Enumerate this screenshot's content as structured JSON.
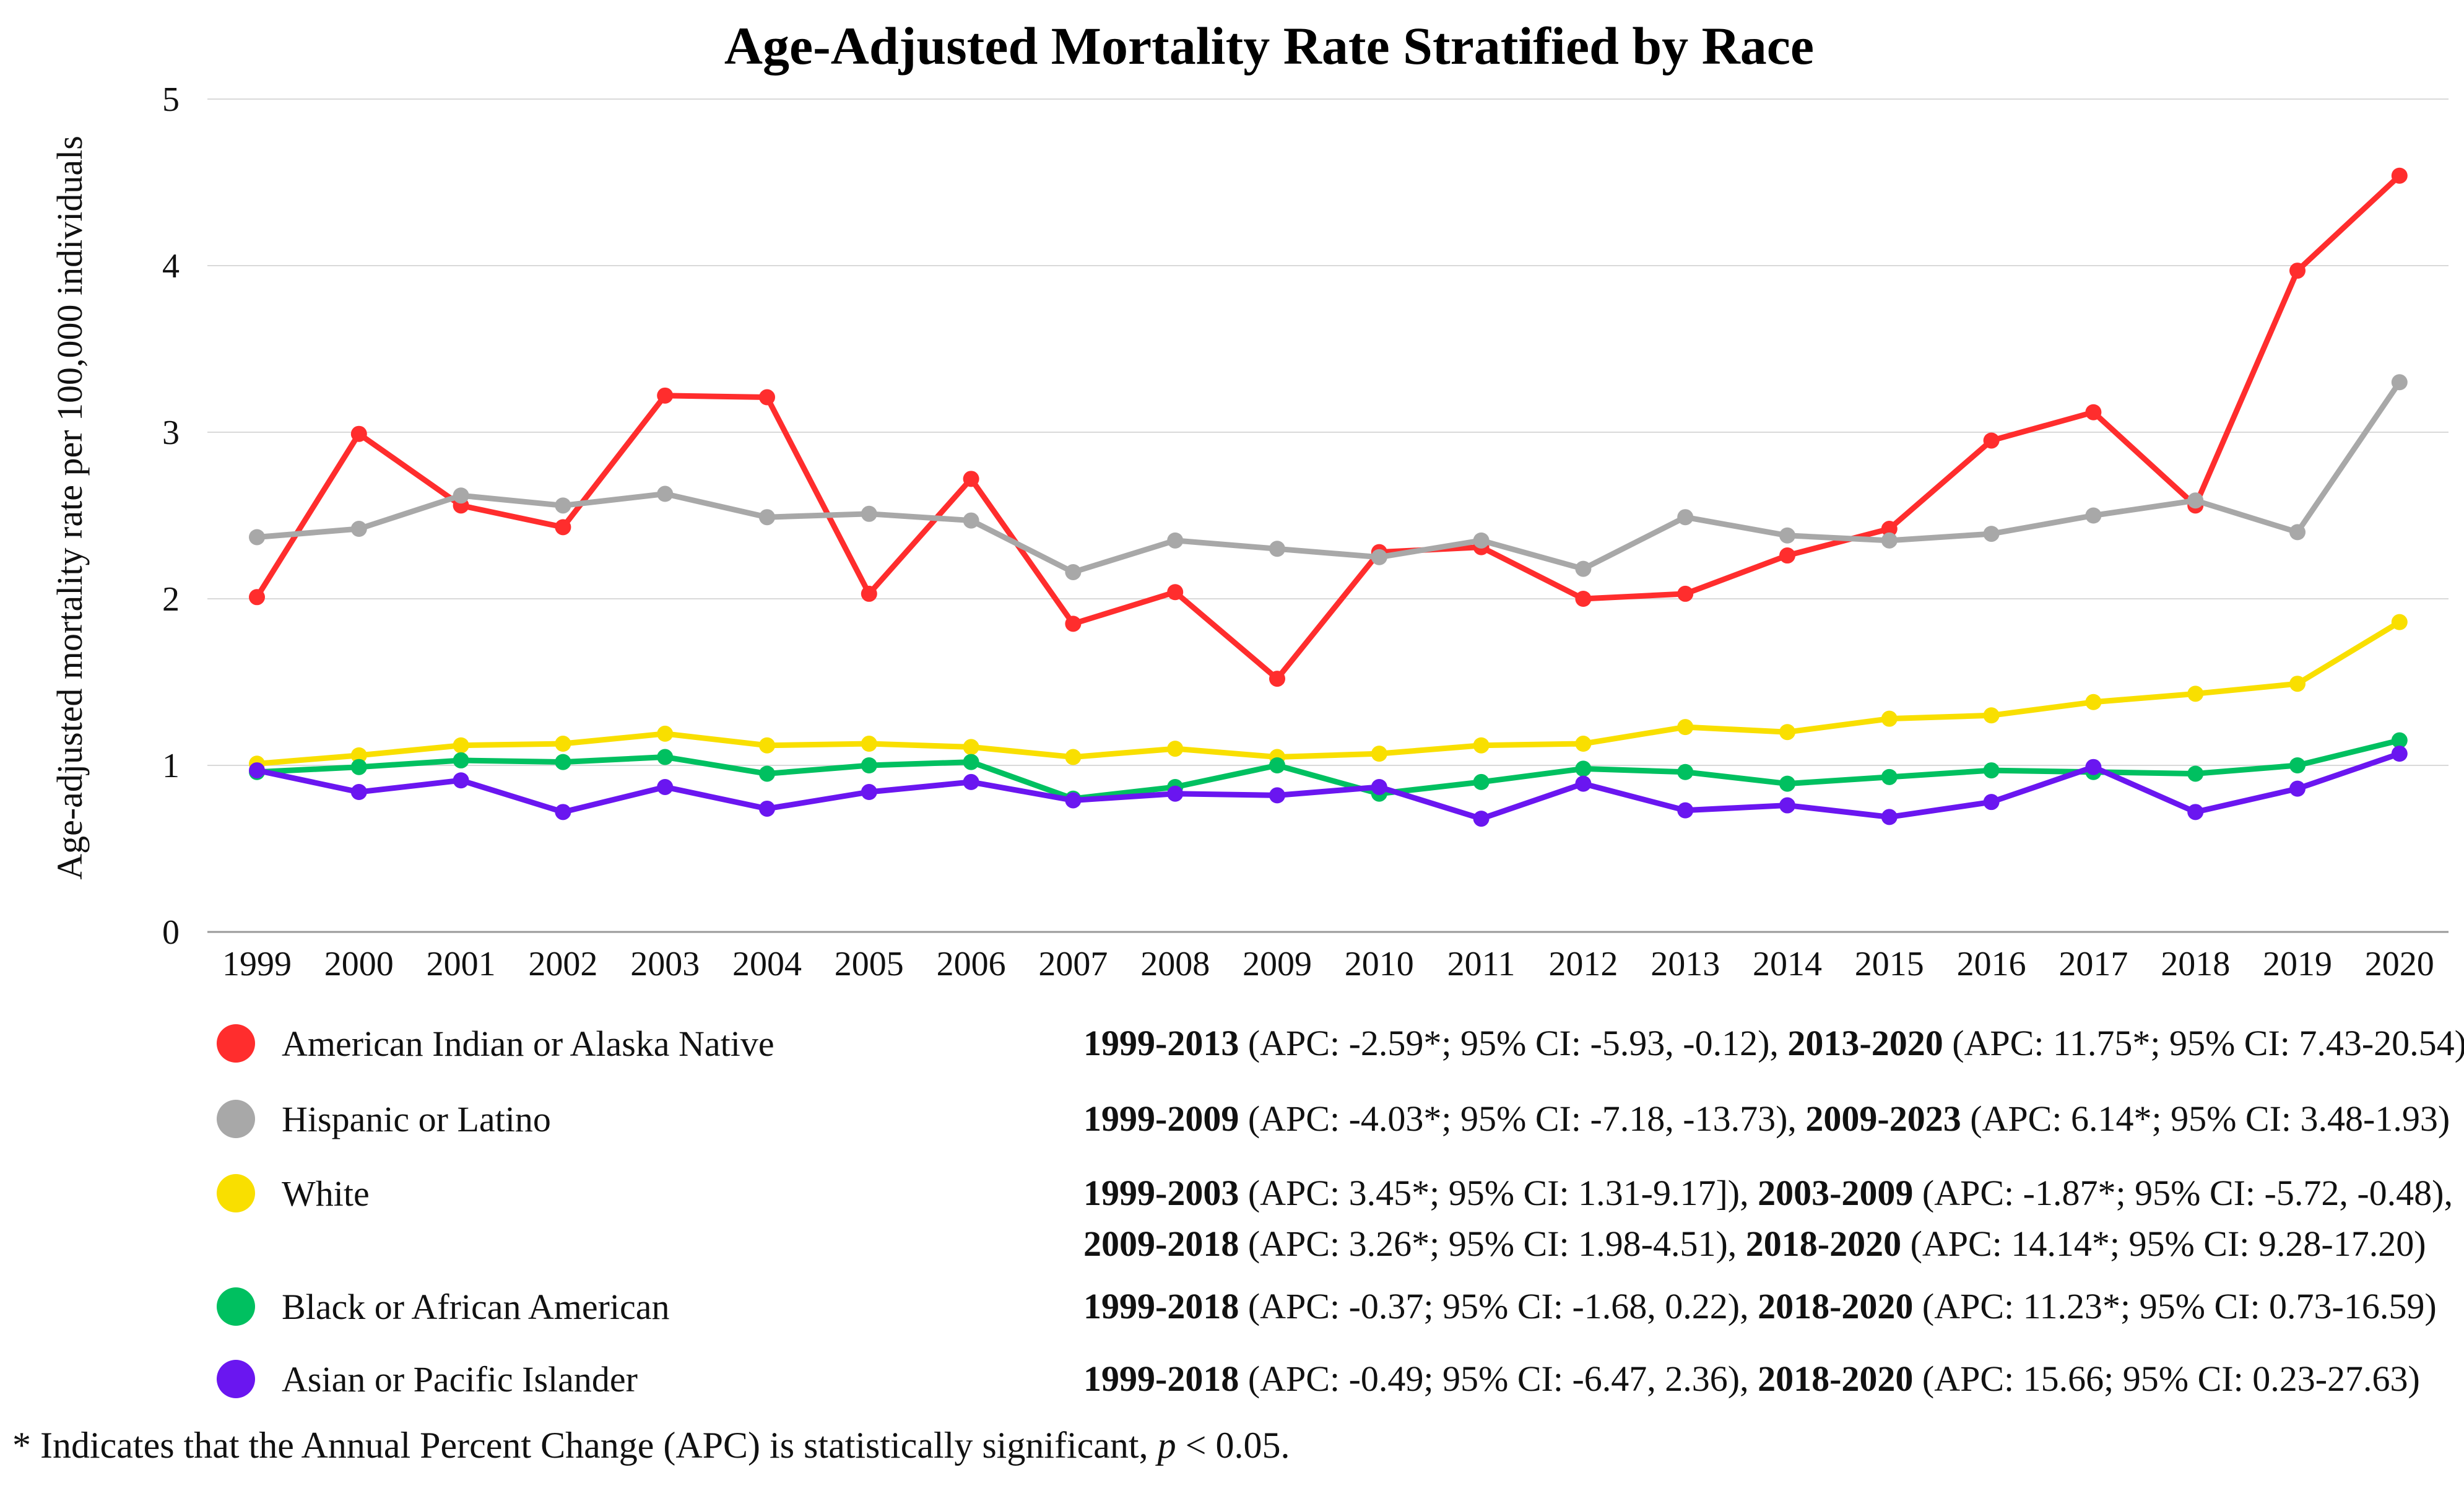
{
  "chart_data": {
    "type": "line",
    "title": "Age-Adjusted Mortality Rate Stratified by Race",
    "xlabel": "",
    "ylabel": "Age-adjusted mortality rate per 100,000 individuals",
    "ylim": [
      0,
      5
    ],
    "yticks": [
      "0",
      "1",
      "2",
      "3",
      "4",
      "5"
    ],
    "grid": true,
    "categories": [
      "1999",
      "2000",
      "2001",
      "2002",
      "2003",
      "2004",
      "2005",
      "2006",
      "2007",
      "2008",
      "2009",
      "2010",
      "2011",
      "2012",
      "2013",
      "2014",
      "2015",
      "2016",
      "2017",
      "2018",
      "2019",
      "2020"
    ],
    "series": [
      {
        "name": "American Indian or Alaska Native",
        "color": "#ff2d2d",
        "values": [
          2.01,
          2.99,
          2.56,
          2.43,
          3.22,
          3.21,
          2.03,
          2.72,
          1.85,
          2.04,
          1.52,
          2.28,
          2.31,
          2.0,
          2.03,
          2.26,
          2.42,
          2.95,
          3.12,
          2.56,
          3.97,
          4.54
        ]
      },
      {
        "name": "Hispanic or Latino",
        "color": "#a8a8a8",
        "values": [
          2.37,
          2.42,
          2.62,
          2.56,
          2.63,
          2.49,
          2.51,
          2.47,
          2.16,
          2.35,
          2.3,
          2.25,
          2.35,
          2.18,
          2.49,
          2.38,
          2.35,
          2.39,
          2.5,
          2.59,
          2.4,
          3.3
        ]
      },
      {
        "name": "White",
        "color": "#f9df00",
        "values": [
          1.01,
          1.06,
          1.12,
          1.13,
          1.19,
          1.12,
          1.13,
          1.11,
          1.05,
          1.1,
          1.05,
          1.07,
          1.12,
          1.13,
          1.23,
          1.2,
          1.28,
          1.3,
          1.38,
          1.43,
          1.49,
          1.86
        ]
      },
      {
        "name": "Black or African American",
        "color": "#00c060",
        "values": [
          0.96,
          0.99,
          1.03,
          1.02,
          1.05,
          0.95,
          1.0,
          1.02,
          0.8,
          0.87,
          1.0,
          0.83,
          0.9,
          0.98,
          0.96,
          0.89,
          0.93,
          0.97,
          0.96,
          0.95,
          1.0,
          1.15
        ]
      },
      {
        "name": "Asian or Pacific Islander",
        "color": "#6a16f0",
        "values": [
          0.97,
          0.84,
          0.91,
          0.72,
          0.87,
          0.74,
          0.84,
          0.9,
          0.79,
          0.83,
          0.82,
          0.87,
          0.68,
          0.89,
          0.73,
          0.76,
          0.69,
          0.78,
          0.99,
          0.72,
          0.86,
          1.07
        ]
      }
    ]
  },
  "legend": [
    {
      "name": "American Indian or Alaska Native",
      "color": "#ff2d2d",
      "apc_lines": [
        [
          {
            "bold": "1999-2013",
            "text": " (APC: -2.59*; 95% CI: -5.93, -0.12), "
          },
          {
            "bold": "2013-2020",
            "text": " (APC: 11.75*; 95% CI: 7.43-20.54)"
          }
        ]
      ]
    },
    {
      "name": "Hispanic or Latino",
      "color": "#a8a8a8",
      "apc_lines": [
        [
          {
            "bold": "1999-2009",
            "text": " (APC: -4.03*; 95% CI: -7.18, -13.73), "
          },
          {
            "bold": "2009-2023",
            "text": " (APC: 6.14*; 95% CI: 3.48-1.93)"
          }
        ]
      ]
    },
    {
      "name": "White",
      "color": "#f9df00",
      "apc_lines": [
        [
          {
            "bold": "1999-2003",
            "text": " (APC: 3.45*; 95% CI: 1.31-9.17]), "
          },
          {
            "bold": "2003-2009",
            "text": " (APC: -1.87*; 95% CI: -5.72, -0.48),"
          }
        ],
        [
          {
            "bold": "2009-2018",
            "text": " (APC: 3.26*; 95% CI: 1.98-4.51), "
          },
          {
            "bold": "2018-2020",
            "text": " (APC: 14.14*; 95% CI: 9.28-17.20)"
          }
        ]
      ]
    },
    {
      "name": "Black or African American",
      "color": "#00c060",
      "apc_lines": [
        [
          {
            "bold": "1999-2018",
            "text": " (APC: -0.37; 95% CI: -1.68, 0.22), "
          },
          {
            "bold": "2018-2020",
            "text": " (APC: 11.23*; 95% CI: 0.73-16.59)"
          }
        ]
      ]
    },
    {
      "name": "Asian or Pacific Islander",
      "color": "#6a16f0",
      "apc_lines": [
        [
          {
            "bold": "1999-2018",
            "text": " (APC: -0.49; 95% CI: -6.47, 2.36), "
          },
          {
            "bold": "2018-2020",
            "text": " (APC: 15.66; 95% CI: 0.23-27.63)"
          }
        ]
      ]
    }
  ],
  "footnote": {
    "prefix": "* Indicates that the Annual Percent Change (APC) is statistically significant, ",
    "italic": "p",
    "suffix": " < 0.05."
  }
}
